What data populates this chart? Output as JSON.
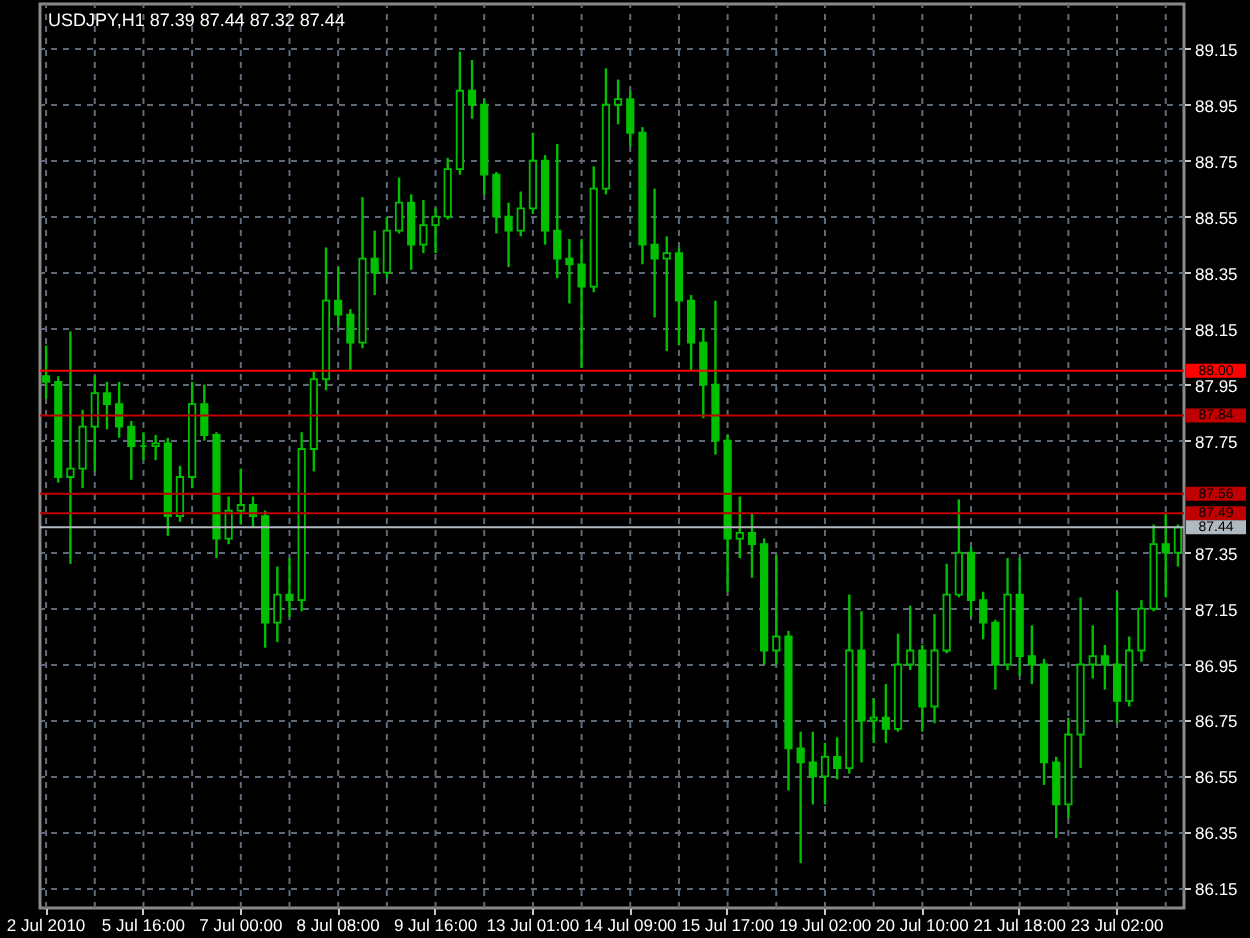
{
  "chart_data": {
    "type": "candlestick",
    "title": "USDJPY,H1 87.39 87.44 87.32 87.44",
    "color": "#00c000",
    "categories": [
      "2 Jul 2010",
      null,
      null,
      null,
      null,
      null,
      null,
      null,
      "5 Jul 16:00",
      null,
      null,
      null,
      null,
      null,
      null,
      null,
      "7 Jul 00:00",
      null,
      null,
      null,
      null,
      null,
      null,
      null,
      "8 Jul 08:00",
      null,
      null,
      null,
      null,
      null,
      null,
      null,
      "9 Jul 16:00",
      null,
      null,
      null,
      null,
      null,
      null,
      null,
      "13 Jul 01:00",
      null,
      null,
      null,
      null,
      null,
      null,
      null,
      "14 Jul 09:00",
      null,
      null,
      null,
      null,
      null,
      null,
      null,
      "15 Jul 17:00",
      null,
      null,
      null,
      null,
      null,
      null,
      null,
      "19 Jul 02:00",
      null,
      null,
      null,
      null,
      null,
      null,
      null,
      "20 Jul 10:00",
      null,
      null,
      null,
      null,
      null,
      null,
      null,
      "21 Jul 18:00",
      null,
      null,
      null,
      null,
      null,
      null,
      null,
      "23 Jul 02:00",
      null,
      null,
      null,
      null,
      null
    ],
    "ohlc": [
      [
        87.98,
        88.09,
        87.9,
        87.96
      ],
      [
        87.96,
        87.98,
        87.6,
        87.62
      ],
      [
        87.62,
        88.14,
        87.31,
        87.65
      ],
      [
        87.65,
        87.86,
        87.58,
        87.8
      ],
      [
        87.8,
        87.98,
        87.64,
        87.92
      ],
      [
        87.92,
        87.96,
        87.79,
        87.88
      ],
      [
        87.88,
        87.96,
        87.76,
        87.8
      ],
      [
        87.8,
        87.82,
        87.61,
        87.73
      ],
      [
        87.73,
        87.78,
        87.68,
        87.73
      ],
      [
        87.73,
        87.77,
        87.68,
        87.74
      ],
      [
        87.74,
        87.76,
        87.41,
        87.48
      ],
      [
        87.48,
        87.66,
        87.46,
        87.62
      ],
      [
        87.62,
        87.96,
        87.58,
        87.88
      ],
      [
        87.88,
        87.95,
        87.75,
        87.77
      ],
      [
        87.77,
        87.78,
        87.33,
        87.4
      ],
      [
        87.4,
        87.55,
        87.38,
        87.5
      ],
      [
        87.5,
        87.65,
        87.45,
        87.52
      ],
      [
        87.52,
        87.55,
        87.44,
        87.48
      ],
      [
        87.48,
        87.5,
        87.01,
        87.1
      ],
      [
        87.1,
        87.3,
        87.03,
        87.2
      ],
      [
        87.2,
        87.33,
        87.12,
        87.18
      ],
      [
        87.18,
        87.78,
        87.14,
        87.72
      ],
      [
        87.72,
        88.0,
        87.64,
        87.97
      ],
      [
        87.97,
        88.44,
        87.93,
        88.25
      ],
      [
        88.25,
        88.37,
        88.16,
        88.2
      ],
      [
        88.2,
        88.22,
        88.0,
        88.1
      ],
      [
        88.1,
        88.62,
        88.08,
        88.4
      ],
      [
        88.4,
        88.5,
        88.27,
        88.35
      ],
      [
        88.35,
        88.55,
        88.33,
        88.5
      ],
      [
        88.5,
        88.69,
        88.49,
        88.6
      ],
      [
        88.6,
        88.63,
        88.36,
        88.45
      ],
      [
        88.45,
        88.61,
        88.42,
        88.52
      ],
      [
        88.52,
        88.58,
        88.42,
        88.55
      ],
      [
        88.55,
        88.76,
        88.54,
        88.72
      ],
      [
        88.72,
        89.14,
        88.7,
        89.0
      ],
      [
        89.0,
        89.11,
        88.9,
        88.95
      ],
      [
        88.95,
        88.97,
        88.63,
        88.7
      ],
      [
        88.7,
        88.71,
        88.49,
        88.55
      ],
      [
        88.55,
        88.6,
        88.37,
        88.5
      ],
      [
        88.5,
        88.64,
        88.48,
        88.58
      ],
      [
        88.58,
        88.85,
        88.56,
        88.75
      ],
      [
        88.75,
        88.77,
        88.45,
        88.5
      ],
      [
        88.5,
        88.81,
        88.33,
        88.4
      ],
      [
        88.4,
        88.47,
        88.24,
        88.38
      ],
      [
        88.38,
        88.47,
        88.01,
        88.3
      ],
      [
        88.3,
        88.73,
        88.28,
        88.65
      ],
      [
        88.65,
        89.08,
        88.63,
        88.95
      ],
      [
        88.95,
        89.04,
        88.88,
        88.97
      ],
      [
        88.97,
        89.0,
        88.8,
        88.85
      ],
      [
        88.85,
        88.87,
        88.38,
        88.45
      ],
      [
        88.45,
        88.65,
        88.19,
        88.4
      ],
      [
        88.4,
        88.48,
        88.07,
        88.42
      ],
      [
        88.42,
        88.44,
        88.09,
        88.25
      ],
      [
        88.25,
        88.27,
        88.0,
        88.1
      ],
      [
        88.1,
        88.15,
        87.83,
        87.95
      ],
      [
        87.95,
        88.25,
        87.7,
        87.75
      ],
      [
        87.75,
        87.77,
        87.21,
        87.4
      ],
      [
        87.4,
        87.55,
        87.33,
        87.42
      ],
      [
        87.42,
        87.49,
        87.26,
        87.38
      ],
      [
        87.38,
        87.4,
        86.95,
        87.0
      ],
      [
        87.0,
        87.34,
        86.95,
        87.05
      ],
      [
        87.05,
        87.07,
        86.5,
        86.65
      ],
      [
        86.65,
        86.71,
        86.24,
        86.6
      ],
      [
        86.6,
        86.71,
        86.45,
        86.55
      ],
      [
        86.55,
        86.67,
        86.45,
        86.62
      ],
      [
        86.62,
        86.69,
        86.54,
        86.58
      ],
      [
        86.58,
        87.2,
        86.56,
        87.0
      ],
      [
        87.0,
        87.14,
        86.6,
        86.75
      ],
      [
        86.75,
        86.83,
        86.67,
        86.76
      ],
      [
        86.76,
        86.88,
        86.67,
        86.72
      ],
      [
        86.72,
        87.06,
        86.71,
        86.95
      ],
      [
        86.95,
        87.16,
        86.93,
        87.0
      ],
      [
        87.0,
        87.02,
        86.71,
        86.8
      ],
      [
        86.8,
        87.13,
        86.74,
        87.0
      ],
      [
        87.0,
        87.31,
        86.99,
        87.2
      ],
      [
        87.2,
        87.54,
        87.19,
        87.35
      ],
      [
        87.35,
        87.37,
        87.12,
        87.18
      ],
      [
        87.18,
        87.21,
        87.04,
        87.1
      ],
      [
        87.1,
        87.11,
        86.86,
        86.95
      ],
      [
        86.95,
        87.33,
        86.93,
        87.2
      ],
      [
        87.2,
        87.33,
        86.91,
        86.98
      ],
      [
        86.98,
        87.09,
        86.88,
        86.95
      ],
      [
        86.95,
        86.97,
        86.52,
        86.6
      ],
      [
        86.6,
        86.62,
        86.33,
        86.45
      ],
      [
        86.45,
        86.76,
        86.4,
        86.7
      ],
      [
        86.7,
        87.19,
        86.58,
        86.95
      ],
      [
        86.95,
        87.09,
        86.9,
        86.98
      ],
      [
        86.98,
        87.02,
        86.86,
        86.95
      ],
      [
        86.95,
        87.21,
        86.74,
        86.82
      ],
      [
        86.82,
        87.05,
        86.8,
        87.0
      ],
      [
        87.0,
        87.18,
        86.96,
        87.15
      ],
      [
        87.15,
        87.45,
        87.14,
        87.38
      ],
      [
        87.38,
        87.49,
        87.19,
        87.35
      ],
      [
        87.35,
        87.45,
        87.3,
        87.44
      ]
    ],
    "ylim": [
      86.08,
      89.31
    ],
    "yticks": [
      86.15,
      86.35,
      86.55,
      86.75,
      86.95,
      87.15,
      87.35,
      87.75,
      87.95,
      88.15,
      88.35,
      88.55,
      88.75,
      88.95,
      89.15
    ],
    "grid": true,
    "ref_lines": [
      {
        "axis": "y",
        "value": 88.0,
        "label": "88.00",
        "color": "#ff0000"
      },
      {
        "axis": "y",
        "value": 87.84,
        "label": "87.84",
        "color": "#c00000"
      },
      {
        "axis": "y",
        "value": 87.56,
        "label": "87.56",
        "color": "#c00000"
      },
      {
        "axis": "y",
        "value": 87.49,
        "label": "87.49",
        "color": "#c00000"
      },
      {
        "axis": "y",
        "value": 87.44,
        "label": "87.44",
        "color": "#b0b8c0"
      }
    ]
  }
}
